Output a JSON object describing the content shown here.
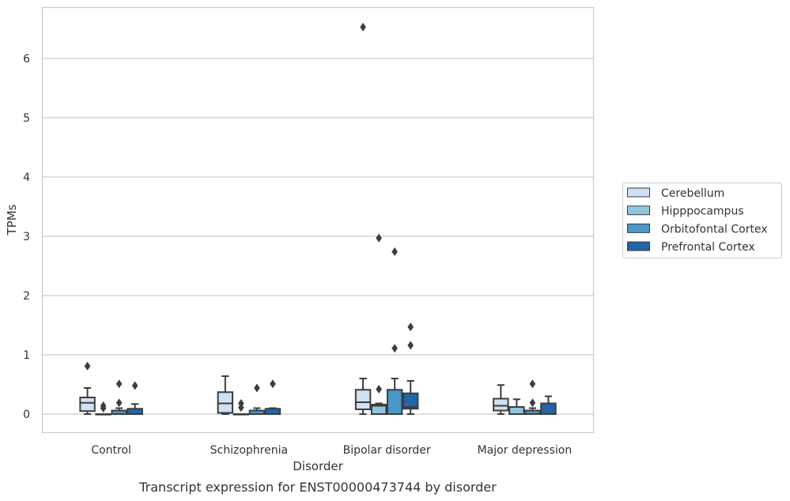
{
  "chart_data": {
    "type": "box",
    "caption": "Transcript expression for ENST00000473744 by disorder",
    "xlabel": "Disorder",
    "ylabel": "TPMs",
    "ylim": [
      -0.32,
      6.9
    ],
    "yticks": [
      0,
      1,
      2,
      3,
      4,
      5,
      6
    ],
    "grid": "horizontal",
    "legend_placement": "right",
    "categories": [
      "Control",
      "Schizophrenia",
      "Bipolar disorder",
      "Major depression"
    ],
    "series": [
      {
        "name": "Cerebellum",
        "color": "#cfe1f2",
        "boxes": [
          {
            "whislo": 0.0,
            "q1": 0.05,
            "med": 0.19,
            "q3": 0.28,
            "whishi": 0.44,
            "fliers": [
              0.81
            ]
          },
          {
            "whislo": 0.0,
            "q1": 0.02,
            "med": 0.18,
            "q3": 0.37,
            "whishi": 0.64,
            "fliers": []
          },
          {
            "whislo": 0.0,
            "q1": 0.08,
            "med": 0.2,
            "q3": 0.41,
            "whishi": 0.6,
            "fliers": [
              6.53
            ]
          },
          {
            "whislo": 0.0,
            "q1": 0.06,
            "med": 0.14,
            "q3": 0.26,
            "whishi": 0.49,
            "fliers": []
          }
        ]
      },
      {
        "name": "Hipppocampus",
        "color": "#93c4de",
        "boxes": [
          {
            "whislo": 0.0,
            "q1": 0.0,
            "med": 0.0,
            "q3": 0.0,
            "whishi": 0.0,
            "fliers": [
              0.1,
              0.14
            ]
          },
          {
            "whislo": 0.0,
            "q1": 0.0,
            "med": 0.0,
            "q3": 0.0,
            "whishi": 0.0,
            "fliers": [
              0.11,
              0.18
            ]
          },
          {
            "whislo": 0.0,
            "q1": 0.0,
            "med": 0.14,
            "q3": 0.16,
            "whishi": 0.18,
            "fliers": [
              0.42,
              2.97
            ]
          },
          {
            "whislo": 0.0,
            "q1": 0.0,
            "med": 0.0,
            "q3": 0.12,
            "whishi": 0.25,
            "fliers": []
          }
        ]
      },
      {
        "name": "Orbitofontal Cortex",
        "color": "#4a98c9",
        "boxes": [
          {
            "whislo": 0.0,
            "q1": 0.0,
            "med": 0.0,
            "q3": 0.06,
            "whishi": 0.1,
            "fliers": [
              0.19,
              0.51
            ]
          },
          {
            "whislo": 0.0,
            "q1": 0.0,
            "med": 0.0,
            "q3": 0.06,
            "whishi": 0.1,
            "fliers": [
              0.44
            ]
          },
          {
            "whislo": 0.0,
            "q1": 0.0,
            "med": 0.0,
            "q3": 0.41,
            "whishi": 0.6,
            "fliers": [
              1.11,
              2.74
            ]
          },
          {
            "whislo": 0.0,
            "q1": 0.0,
            "med": 0.0,
            "q3": 0.06,
            "whishi": 0.1,
            "fliers": [
              0.19,
              0.51
            ]
          }
        ]
      },
      {
        "name": "Prefrontal Cortex",
        "color": "#2265a8",
        "boxes": [
          {
            "whislo": 0.0,
            "q1": 0.0,
            "med": 0.0,
            "q3": 0.09,
            "whishi": 0.17,
            "fliers": [
              0.48
            ]
          },
          {
            "whislo": 0.0,
            "q1": 0.0,
            "med": 0.0,
            "q3": 0.09,
            "whishi": 0.1,
            "fliers": [
              0.51
            ]
          },
          {
            "whislo": 0.0,
            "q1": 0.09,
            "med": 0.12,
            "q3": 0.35,
            "whishi": 0.56,
            "fliers": [
              1.16,
              1.47
            ]
          },
          {
            "whislo": 0.0,
            "q1": 0.0,
            "med": 0.0,
            "q3": 0.18,
            "whishi": 0.3,
            "fliers": []
          }
        ]
      }
    ]
  }
}
